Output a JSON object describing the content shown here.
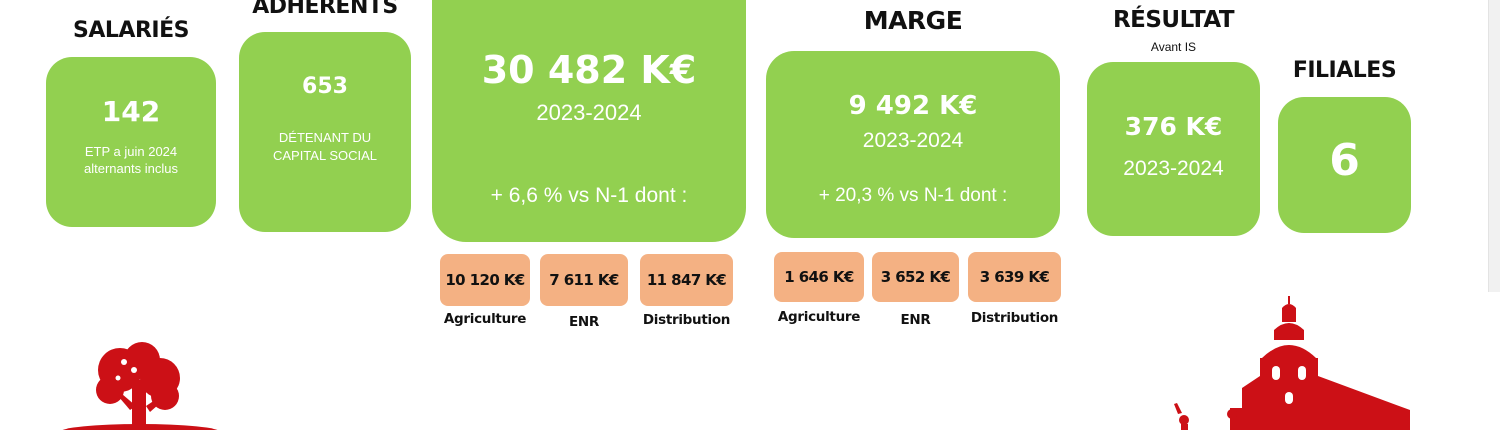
{
  "salaries": {
    "heading": "SALARIÉS",
    "value": "142",
    "line1": "ETP a juin 2024",
    "line2": "alternants inclus"
  },
  "adherents": {
    "heading": "ADHÉRENTS",
    "value": "653",
    "line1": "DÉTENANT DU",
    "line2": "CAPITAL SOCIAL"
  },
  "ca": {
    "value": "30 482 K€",
    "period": "2023-2024",
    "growth": "+ 6,6 % vs N-1 dont :",
    "breakdown": [
      {
        "value": "10 120 K€",
        "label": "Agriculture"
      },
      {
        "value": "7 611 K€",
        "label": "ENR"
      },
      {
        "value": "11 847 K€",
        "label": "Distribution"
      }
    ]
  },
  "marge": {
    "heading": "MARGE",
    "value": "9 492 K€",
    "period": "2023-2024",
    "growth": "+ 20,3 % vs N-1 dont :",
    "breakdown": [
      {
        "value": "1 646 K€",
        "label": "Agriculture"
      },
      {
        "value": "3 652 K€",
        "label": "ENR"
      },
      {
        "value": "3 639 K€",
        "label": "Distribution"
      }
    ]
  },
  "resultat": {
    "heading": "RÉSULTAT",
    "subheading": "Avant IS",
    "value": "376 K€",
    "period": "2023-2024"
  },
  "filiales": {
    "heading": "FILIALES",
    "value": "6"
  },
  "colors": {
    "card": "#92d050",
    "pill": "#f4b183",
    "illustration": "#cc1016"
  },
  "icons": {
    "left": "tree-icon",
    "right": "church-icon"
  }
}
